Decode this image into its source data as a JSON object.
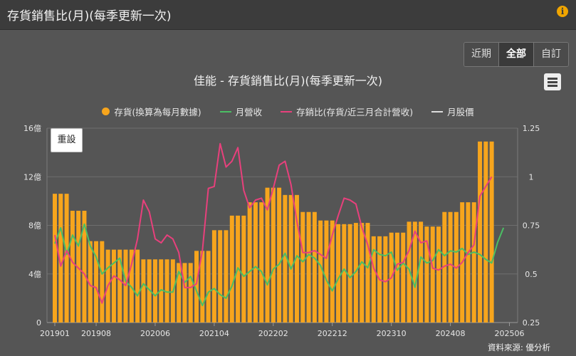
{
  "header": {
    "title": "存貨銷售比(月)(每季更新一次)",
    "info_icon": "info-icon"
  },
  "range_buttons": [
    {
      "label": "近期",
      "active": false
    },
    {
      "label": "全部",
      "active": true
    },
    {
      "label": "自訂",
      "active": false
    }
  ],
  "toolbar": {
    "reset_label": "重設",
    "menu_icon": "hamburger-menu-icon"
  },
  "source_text": "資料來源: 優分析",
  "colors": {
    "inventory": "#f7a51d",
    "revenue": "#4bbf64",
    "ratio": "#e8407c",
    "price": "#dddddd"
  },
  "chart_data": {
    "type": "bar+line",
    "title": "佳能 - 存貨銷售比(月)(每季更新一次)",
    "legend": [
      "存貨(換算為每月數據)",
      "月營收",
      "存銷比(存貨/近三月合計營收)",
      "月股價"
    ],
    "legend_placement": "top",
    "x_tick_labels": [
      "201901",
      "201908",
      "202006",
      "202104",
      "202202",
      "202212",
      "202310",
      "202408",
      "202506"
    ],
    "x_range": [
      "201901",
      "202506"
    ],
    "y_left": {
      "ticks": [
        "0",
        "4億",
        "8億",
        "12億",
        "16億"
      ],
      "range": [
        0,
        16
      ],
      "unit": "億"
    },
    "y_right": {
      "ticks": [
        "0.25",
        "0.5",
        "0.75",
        "1",
        "1.25"
      ],
      "range": [
        0.25,
        1.25
      ]
    },
    "grid": true,
    "series": [
      {
        "name": "存貨(換算為每月數據)",
        "type": "bar",
        "values": [
          10.6,
          10.6,
          10.6,
          9.2,
          9.2,
          9.2,
          6.7,
          6.7,
          6.7,
          6.0,
          6.0,
          6.0,
          6.0,
          6.0,
          6.0,
          5.2,
          5.2,
          5.2,
          5.2,
          5.2,
          5.2,
          4.9,
          4.9,
          4.9,
          5.9,
          5.9,
          5.9,
          7.6,
          7.6,
          7.6,
          8.8,
          8.8,
          8.8,
          9.9,
          9.9,
          9.9,
          11.1,
          11.1,
          11.1,
          10.5,
          10.5,
          10.5,
          9.1,
          9.1,
          9.1,
          8.4,
          8.4,
          8.4,
          8.1,
          8.1,
          8.1,
          8.2,
          8.2,
          8.2,
          7.1,
          7.1,
          7.1,
          7.4,
          7.4,
          7.4,
          8.3,
          8.3,
          8.3,
          7.9,
          7.9,
          7.9,
          9.1,
          9.1,
          9.1,
          9.9,
          9.9,
          9.9,
          14.9,
          14.9,
          14.9
        ]
      },
      {
        "name": "月營收",
        "type": "line",
        "values": [
          6.5,
          7.8,
          5.6,
          7.2,
          6.3,
          8.1,
          6.3,
          5.4,
          4.0,
          4.5,
          4.9,
          5.3,
          3.4,
          2.9,
          2.2,
          3.2,
          2.7,
          2.2,
          2.7,
          2.5,
          2.5,
          4.2,
          3.3,
          3.8,
          2.6,
          1.4,
          2.5,
          2.8,
          2.3,
          2.0,
          3.0,
          4.5,
          3.8,
          4.2,
          4.6,
          4.2,
          3.1,
          4.4,
          4.8,
          5.7,
          4.4,
          5.5,
          5.0,
          5.6,
          5.3,
          4.7,
          3.5,
          2.6,
          3.6,
          4.4,
          3.7,
          4.2,
          5.0,
          4.5,
          6.0,
          5.6,
          5.5,
          5.8,
          4.3,
          4.9,
          4.4,
          2.9,
          5.4,
          4.9,
          5.1,
          6.0,
          5.5,
          5.9,
          5.8,
          6.1,
          5.6,
          5.8,
          5.6,
          5.2,
          4.9,
          6.6,
          7.8
        ]
      },
      {
        "name": "存銷比(存貨/近三月合計營收)",
        "type": "line",
        "values": [
          0.7,
          0.54,
          0.62,
          0.56,
          0.53,
          0.5,
          0.44,
          0.43,
          0.35,
          0.44,
          0.49,
          0.47,
          0.44,
          0.55,
          0.68,
          0.88,
          0.82,
          0.68,
          0.66,
          0.7,
          0.68,
          0.61,
          0.43,
          0.43,
          0.45,
          0.62,
          0.94,
          0.95,
          1.17,
          1.05,
          1.08,
          1.15,
          0.93,
          0.84,
          0.88,
          0.89,
          0.83,
          0.94,
          1.06,
          1.08,
          0.96,
          0.77,
          0.61,
          0.61,
          0.62,
          0.6,
          0.58,
          0.7,
          0.8,
          0.89,
          0.88,
          0.86,
          0.74,
          0.65,
          0.53,
          0.47,
          0.46,
          0.48,
          0.55,
          0.56,
          0.62,
          0.72,
          0.66,
          0.67,
          0.53,
          0.52,
          0.54,
          0.55,
          0.53,
          0.56,
          0.61,
          0.65,
          0.9,
          0.95,
          1.0
        ]
      }
    ]
  }
}
